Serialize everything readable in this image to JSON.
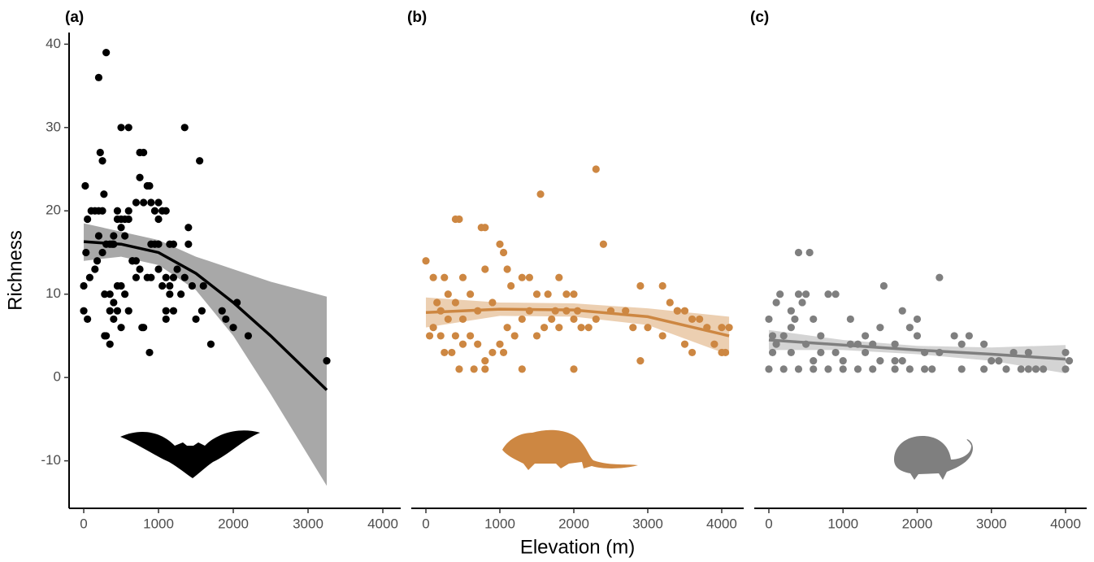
{
  "chart_data": [
    {
      "type": "scatter",
      "label": "(a)",
      "ylabel": "Richness",
      "color": "#000000",
      "ribbon_color": "#999999",
      "xlim": [
        -196,
        4239
      ],
      "ylim": [
        -15.7,
        41.4
      ],
      "xticks": [
        0,
        1000,
        2000,
        3000,
        4000
      ],
      "yticks": [
        -10,
        0,
        10,
        20,
        30,
        40
      ],
      "x": [
        300,
        200,
        220,
        250,
        270,
        20,
        50,
        150,
        200,
        250,
        100,
        30,
        80,
        0,
        0,
        50,
        150,
        180,
        200,
        250,
        300,
        350,
        400,
        450,
        450,
        500,
        500,
        550,
        550,
        600,
        600,
        650,
        700,
        700,
        750,
        750,
        800,
        800,
        850,
        880,
        900,
        950,
        1000,
        1000,
        1050,
        1100,
        1150,
        1200,
        1250,
        1350,
        1400,
        1400,
        1550,
        500,
        600,
        400,
        450,
        500,
        550,
        450,
        400,
        350,
        350,
        300,
        280,
        280,
        350,
        400,
        500,
        600,
        700,
        750,
        800,
        780,
        850,
        900,
        900,
        880,
        1000,
        1050,
        1100,
        1150,
        1200,
        1150,
        1100,
        1200,
        1300,
        1350,
        1450,
        1500,
        1600,
        1580,
        1700,
        1850,
        1900,
        2000,
        2050,
        2200,
        3250,
        1000,
        950,
        650,
        380,
        1100
      ],
      "y": [
        39,
        36,
        27,
        26,
        22,
        23,
        19,
        20,
        20,
        20,
        20,
        15,
        12,
        11,
        8,
        7,
        13,
        14,
        17,
        15,
        16,
        16,
        17,
        20,
        19,
        18,
        19,
        17,
        19,
        20,
        19,
        14,
        14,
        21,
        24,
        27,
        27,
        21,
        23,
        23,
        21,
        20,
        16,
        19,
        20,
        20,
        16,
        16,
        13,
        30,
        18,
        16,
        26,
        30,
        30,
        16,
        11,
        11,
        10,
        8,
        7,
        4,
        8,
        5,
        5,
        10,
        10,
        9,
        6,
        8,
        12,
        13,
        6,
        6,
        12,
        16,
        12,
        3,
        13,
        11,
        8,
        11,
        12,
        10,
        7,
        8,
        10,
        12,
        11,
        7,
        11,
        8,
        4,
        8,
        7,
        6,
        9,
        5,
        2,
        21,
        16,
        14,
        16,
        12
      ],
      "fit": {
        "x": [
          0,
          500,
          1000,
          1500,
          2000,
          2500,
          3250
        ],
        "y": [
          16.3,
          16,
          15,
          12.5,
          9,
          5,
          -1.5
        ],
        "lower": [
          14,
          14.5,
          13.5,
          10.5,
          5,
          -2,
          -13
        ],
        "upper": [
          18.5,
          17.5,
          16.5,
          14.5,
          13,
          11.5,
          9.7
        ]
      }
    },
    {
      "type": "scatter",
      "label": "(b)",
      "xlabel": "Elevation (m)",
      "color": "#cd8742",
      "ribbon_color": "#e9c7a3",
      "xlim": [
        -198,
        4297
      ],
      "ylim": [
        -15.7,
        41.4
      ],
      "xticks": [
        0,
        1000,
        2000,
        3000,
        4000
      ],
      "x": [
        2300,
        1550,
        400,
        450,
        750,
        800,
        2400,
        1000,
        1050,
        0,
        100,
        250,
        500,
        800,
        1100,
        1150,
        1300,
        1400,
        1500,
        1650,
        1800,
        1900,
        2000,
        2900,
        3200,
        3300,
        3400,
        3500,
        3600,
        3700,
        3800,
        4000,
        4050,
        4100,
        4000,
        3900,
        3600,
        3500,
        3200,
        3000,
        2700,
        2500,
        2300,
        2200,
        2100,
        2000,
        1900,
        1800,
        1700,
        1600,
        1500,
        1400,
        1300,
        1200,
        1100,
        1000,
        900,
        800,
        700,
        600,
        500,
        400,
        300,
        200,
        100,
        50,
        150,
        250,
        350,
        450,
        650,
        800,
        1300,
        2000,
        2900,
        3400,
        1050,
        900,
        600,
        700,
        200,
        300,
        400,
        500,
        2050,
        1750,
        2800
      ],
      "y": [
        25,
        22,
        19,
        19,
        18,
        18,
        16,
        16,
        15,
        14,
        12,
        12,
        12,
        13,
        13,
        11,
        12,
        12,
        10,
        10,
        12,
        10,
        10,
        11,
        11,
        9,
        8,
        8,
        7,
        7,
        6,
        3,
        3,
        6,
        6,
        4,
        3,
        4,
        5,
        6,
        8,
        8,
        7,
        6,
        6,
        7,
        8,
        6,
        7,
        6,
        5,
        8,
        7,
        5,
        6,
        4,
        3,
        2,
        4,
        5,
        7,
        9,
        10,
        8,
        6,
        5,
        9,
        3,
        3,
        1,
        1,
        1,
        1,
        1,
        2,
        8,
        3,
        9,
        10,
        8,
        5,
        7,
        5,
        4,
        8,
        8,
        6
      ],
      "fit": {
        "x": [
          0,
          1000,
          2000,
          3000,
          4100
        ],
        "y": [
          7.8,
          8.2,
          8.1,
          7.3,
          5
        ],
        "lower": [
          6,
          7.4,
          7.3,
          6.3,
          2.7
        ],
        "upper": [
          9.6,
          9,
          8.9,
          8.3,
          7.3
        ]
      }
    },
    {
      "type": "scatter",
      "label": "(c)",
      "color": "#7f7f7f",
      "ribbon_color": "#cccccc",
      "xlim": [
        -197,
        4285
      ],
      "ylim": [
        -15.7,
        41.4
      ],
      "xticks": [
        0,
        1000,
        2000,
        3000,
        4000
      ],
      "x": [
        400,
        550,
        1550,
        2300,
        0,
        50,
        100,
        150,
        300,
        350,
        400,
        450,
        500,
        600,
        800,
        900,
        1100,
        1300,
        1500,
        1700,
        1800,
        1900,
        2000,
        2000,
        2100,
        2300,
        2500,
        2600,
        2700,
        2900,
        3100,
        3300,
        3500,
        3600,
        4000,
        4050,
        4000,
        3700,
        3400,
        3200,
        2900,
        2600,
        2100,
        1900,
        1700,
        1400,
        1200,
        1000,
        800,
        600,
        400,
        200,
        0,
        50,
        100,
        200,
        300,
        500,
        700,
        900,
        1100,
        1300,
        1500,
        1700,
        1000,
        600,
        300,
        700,
        1200,
        1800,
        2200,
        3000,
        3500,
        1400
      ],
      "y": [
        15,
        15,
        11,
        12,
        7,
        5,
        9,
        10,
        8,
        7,
        10,
        9,
        10,
        7,
        10,
        10,
        7,
        5,
        6,
        4,
        8,
        6,
        7,
        5,
        3,
        3,
        5,
        4,
        5,
        4,
        2,
        3,
        3,
        1,
        3,
        2,
        1,
        1,
        1,
        1,
        1,
        1,
        1,
        1,
        1,
        1,
        1,
        1,
        1,
        1,
        1,
        1,
        1,
        3,
        4,
        5,
        6,
        4,
        5,
        3,
        4,
        3,
        2,
        2,
        2,
        2,
        3,
        3,
        4,
        2,
        1,
        2,
        1,
        4
      ],
      "fit": {
        "x": [
          0,
          1000,
          2000,
          3000,
          4000
        ],
        "y": [
          4.5,
          3.9,
          3.3,
          2.8,
          2.2
        ],
        "lower": [
          3.3,
          3.3,
          2.8,
          2,
          0.5
        ],
        "upper": [
          5.7,
          4.5,
          3.8,
          3.6,
          3.9
        ]
      }
    }
  ]
}
